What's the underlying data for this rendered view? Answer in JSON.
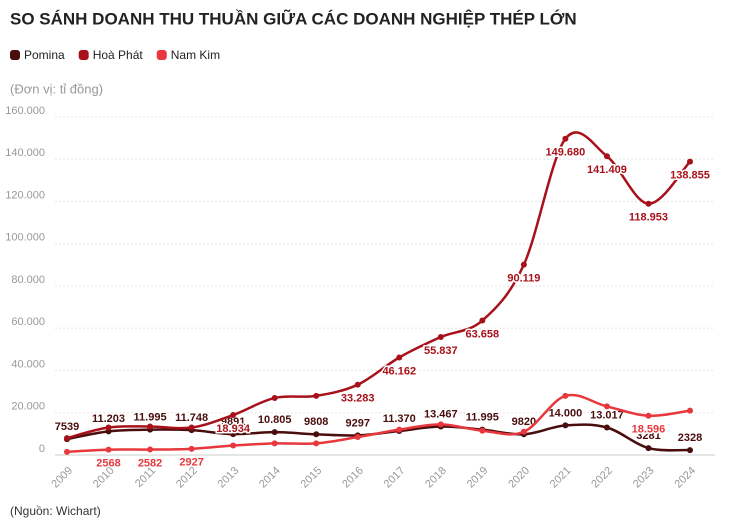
{
  "chart_data": {
    "type": "line",
    "title": "SO SÁNH DOANH THU THUẦN GIỮA CÁC DOANH NGHIỆP THÉP LỚN",
    "subtitle": "(Đơn vị: tỉ đồng)",
    "source": "(Nguồn: Wichart)",
    "categories": [
      "2009",
      "2010",
      "2011",
      "2012",
      "2013",
      "2014",
      "2015",
      "2016",
      "2017",
      "2018",
      "2019",
      "2020",
      "2021",
      "2022",
      "2023",
      "2024"
    ],
    "series": [
      {
        "name": "Pomina",
        "color": "#4a0d0d",
        "values": [
          7539,
          11203,
          11995,
          11748,
          9891,
          10805,
          9808,
          9297,
          11370,
          13467,
          11995,
          9820,
          14000,
          13017,
          3281,
          2328
        ],
        "value_labels": [
          "7539",
          "11.203",
          "11.995",
          "11.748",
          "9891",
          "10.805",
          "9808",
          "9297",
          "11.370",
          "13.467",
          "11.995",
          "9820",
          "14.000",
          "13.017",
          "3281",
          "2328"
        ]
      },
      {
        "name": "Hoà Phát",
        "color": "#a8111a",
        "values": [
          8000,
          13000,
          13500,
          13000,
          18934,
          27000,
          28000,
          33283,
          46162,
          55837,
          63658,
          90119,
          149680,
          141409,
          118953,
          138855
        ],
        "value_labels": [
          null,
          null,
          null,
          null,
          "18.934",
          null,
          null,
          "33.283",
          "46.162",
          "55.837",
          "63.658",
          "90.119",
          "149.680",
          "141.409",
          "118.953",
          "138.855"
        ]
      },
      {
        "name": "Nam Kim",
        "color": "#e8373d",
        "values": [
          1500,
          2568,
          2582,
          2927,
          4500,
          5500,
          5500,
          8500,
          12000,
          14500,
          11500,
          11000,
          28000,
          23000,
          18596,
          21000
        ],
        "value_labels": [
          null,
          "2568",
          "2582",
          "2927",
          null,
          null,
          null,
          null,
          null,
          null,
          null,
          null,
          null,
          null,
          "18.596",
          null
        ]
      }
    ],
    "ylim": [
      0,
      160000
    ],
    "yticks": [
      0,
      {
        "value": 20000,
        "label": "20.000"
      },
      {
        "value": 40000,
        "label": "40.000"
      },
      {
        "value": 60000,
        "label": "60.000"
      },
      {
        "value": 80000,
        "label": "80.000"
      },
      {
        "value": 100000,
        "label": "100.000"
      },
      {
        "value": 120000,
        "label": "120.000"
      },
      {
        "value": 140000,
        "label": "140.000"
      },
      {
        "value": 160000,
        "label": "160.000"
      }
    ],
    "grid": true
  }
}
